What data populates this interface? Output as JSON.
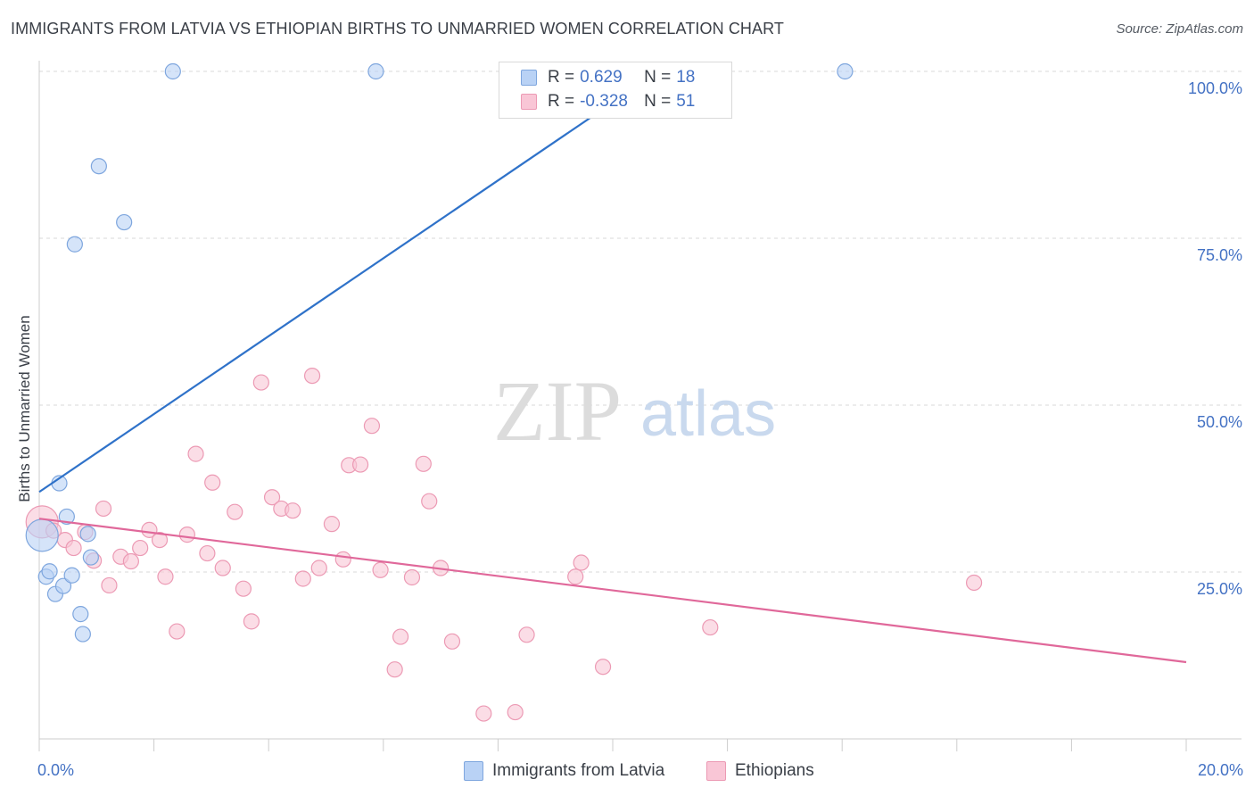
{
  "title": "IMMIGRANTS FROM LATVIA VS ETHIOPIAN BIRTHS TO UNMARRIED WOMEN CORRELATION CHART",
  "source": "Source: ZipAtlas.com",
  "watermark": {
    "zip": "ZIP",
    "atlas": "atlas"
  },
  "colors": {
    "latvia_fill": "#b9d2f5",
    "latvia_stroke": "#7ea6de",
    "latvia_line": "#2f72c9",
    "ethiopian_fill": "#f9c6d6",
    "ethiopian_stroke": "#ec9ab4",
    "ethiopian_line": "#e0689a",
    "tick_text": "#4472c4",
    "grid": "#d9d9d9"
  },
  "legend": {
    "rows": [
      {
        "r_label": "R =",
        "r_value": "0.629",
        "n_label": "N =",
        "n_value": "18"
      },
      {
        "r_label": "R =",
        "r_value": "-0.328",
        "n_label": "N =",
        "n_value": "51"
      }
    ]
  },
  "bottom_legend": [
    "Immigrants from Latvia",
    "Ethiopians"
  ],
  "chart_data": {
    "type": "scatter",
    "title": "IMMIGRANTS FROM LATVIA VS ETHIOPIAN BIRTHS TO UNMARRIED WOMEN CORRELATION CHART",
    "xlabel": "",
    "ylabel": "Births to Unmarried Women",
    "xlim": [
      0,
      20
    ],
    "ylim": [
      0,
      100
    ],
    "x_tick_labels": [
      {
        "value": 0,
        "label": "0.0%"
      },
      {
        "value": 20,
        "label": "20.0%"
      }
    ],
    "y_tick_labels": [
      {
        "value": 25,
        "label": "25.0%"
      },
      {
        "value": 50,
        "label": "50.0%"
      },
      {
        "value": 75,
        "label": "75.0%"
      },
      {
        "value": 100,
        "label": "100.0%"
      }
    ],
    "grid": true,
    "legend_position": "top-center",
    "series": [
      {
        "name": "Immigrants from Latvia",
        "r": 0.629,
        "n": 18,
        "trend": {
          "x": [
            0,
            10.8
          ],
          "y": [
            37,
            100
          ]
        },
        "points": [
          {
            "x": 0.05,
            "y": 30.5,
            "big": true
          },
          {
            "x": 0.12,
            "y": 24.3
          },
          {
            "x": 0.18,
            "y": 25.1
          },
          {
            "x": 0.28,
            "y": 21.7
          },
          {
            "x": 0.35,
            "y": 38.3
          },
          {
            "x": 0.42,
            "y": 22.9
          },
          {
            "x": 0.48,
            "y": 33.3
          },
          {
            "x": 0.57,
            "y": 24.5
          },
          {
            "x": 0.62,
            "y": 74.1
          },
          {
            "x": 0.72,
            "y": 18.7
          },
          {
            "x": 0.76,
            "y": 15.7
          },
          {
            "x": 0.85,
            "y": 30.7
          },
          {
            "x": 0.9,
            "y": 27.2
          },
          {
            "x": 1.04,
            "y": 85.8
          },
          {
            "x": 1.48,
            "y": 77.4
          },
          {
            "x": 2.33,
            "y": 100
          },
          {
            "x": 5.87,
            "y": 100
          },
          {
            "x": 14.05,
            "y": 100
          }
        ]
      },
      {
        "name": "Ethiopians",
        "r": -0.328,
        "n": 51,
        "trend": {
          "x": [
            0,
            20
          ],
          "y": [
            33,
            11.5
          ]
        },
        "points": [
          {
            "x": 0.05,
            "y": 32.5,
            "big": true
          },
          {
            "x": 0.25,
            "y": 31.2
          },
          {
            "x": 0.45,
            "y": 29.8
          },
          {
            "x": 0.6,
            "y": 28.6
          },
          {
            "x": 0.8,
            "y": 31.0
          },
          {
            "x": 0.95,
            "y": 26.7
          },
          {
            "x": 1.12,
            "y": 34.5
          },
          {
            "x": 1.22,
            "y": 23.0
          },
          {
            "x": 1.42,
            "y": 27.3
          },
          {
            "x": 1.6,
            "y": 26.6
          },
          {
            "x": 1.76,
            "y": 28.6
          },
          {
            "x": 1.92,
            "y": 31.3
          },
          {
            "x": 2.1,
            "y": 29.8
          },
          {
            "x": 2.2,
            "y": 24.3
          },
          {
            "x": 2.4,
            "y": 16.1
          },
          {
            "x": 2.58,
            "y": 30.6
          },
          {
            "x": 2.73,
            "y": 42.7
          },
          {
            "x": 2.93,
            "y": 27.8
          },
          {
            "x": 3.02,
            "y": 38.4
          },
          {
            "x": 3.2,
            "y": 25.6
          },
          {
            "x": 3.41,
            "y": 34.0
          },
          {
            "x": 3.56,
            "y": 22.5
          },
          {
            "x": 3.7,
            "y": 17.6
          },
          {
            "x": 3.87,
            "y": 53.4
          },
          {
            "x": 4.06,
            "y": 36.2
          },
          {
            "x": 4.22,
            "y": 34.5
          },
          {
            "x": 4.42,
            "y": 34.2
          },
          {
            "x": 4.6,
            "y": 24.0
          },
          {
            "x": 4.76,
            "y": 54.4
          },
          {
            "x": 4.88,
            "y": 25.6
          },
          {
            "x": 5.1,
            "y": 32.2
          },
          {
            "x": 5.3,
            "y": 26.9
          },
          {
            "x": 5.4,
            "y": 41.0
          },
          {
            "x": 5.6,
            "y": 41.1
          },
          {
            "x": 5.8,
            "y": 46.9
          },
          {
            "x": 5.95,
            "y": 25.3
          },
          {
            "x": 6.2,
            "y": 10.4
          },
          {
            "x": 6.3,
            "y": 15.3
          },
          {
            "x": 6.5,
            "y": 24.2
          },
          {
            "x": 6.7,
            "y": 41.2
          },
          {
            "x": 6.8,
            "y": 35.6
          },
          {
            "x": 7.0,
            "y": 25.6
          },
          {
            "x": 7.2,
            "y": 14.6
          },
          {
            "x": 7.75,
            "y": 3.8
          },
          {
            "x": 8.3,
            "y": 4.0
          },
          {
            "x": 8.5,
            "y": 15.6
          },
          {
            "x": 9.35,
            "y": 24.3
          },
          {
            "x": 9.45,
            "y": 26.4
          },
          {
            "x": 9.83,
            "y": 10.8
          },
          {
            "x": 11.7,
            "y": 16.7
          },
          {
            "x": 16.3,
            "y": 23.4
          }
        ]
      }
    ]
  }
}
